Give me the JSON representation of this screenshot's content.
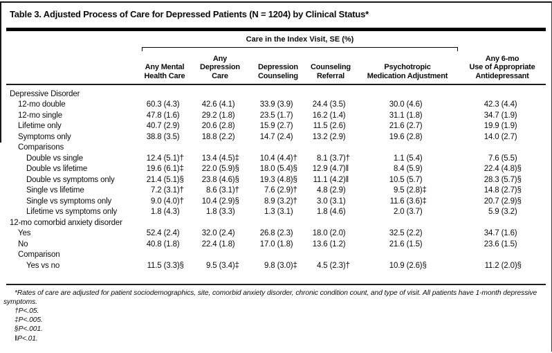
{
  "title": "Table 3. Adjusted Process of Care for Depressed Patients (N = 1204) by Clinical Status*",
  "table": {
    "spanner_label": "Care in the Index Visit, SE (%)",
    "columns": [
      {
        "lines": [
          "Any Mental",
          "Health Care"
        ]
      },
      {
        "lines": [
          "Any",
          "Depression",
          "Care"
        ]
      },
      {
        "lines": [
          "Depression",
          "Counseling"
        ]
      },
      {
        "lines": [
          "Counseling",
          "Referral"
        ]
      },
      {
        "lines": [
          "Psychotropic",
          "Medication Adjustment"
        ]
      },
      {
        "lines": [
          "Any 6-mo",
          "Use of Appropriate",
          "Antidepressant"
        ]
      }
    ],
    "rows": [
      {
        "label": "Depressive Disorder",
        "indent": 0,
        "values": [
          "",
          "",
          "",
          "",
          "",
          ""
        ]
      },
      {
        "label": "12-mo double",
        "indent": 1,
        "values": [
          "60.3 (4.3)",
          "42.6 (4.1)",
          "33.9 (3.9)",
          "24.4 (3.5)",
          "30.0 (4.6)",
          "42.3 (4.4)"
        ]
      },
      {
        "label": "12-mo single",
        "indent": 1,
        "values": [
          "47.8 (1.6)",
          "29.2 (1.8)",
          "23.5 (1.7)",
          "16.2 (1.4)",
          "31.1 (1.8)",
          "34.7 (1.9)"
        ]
      },
      {
        "label": "Lifetime only",
        "indent": 1,
        "values": [
          "40.7 (2.9)",
          "20.6 (2.8)",
          "15.9 (2.7)",
          "11.5 (2.6)",
          "21.6 (2.7)",
          "19.9 (1.9)"
        ]
      },
      {
        "label": "Symptoms only",
        "indent": 1,
        "values": [
          "38.8 (3.5)",
          "18.8 (2.2)",
          "14.7 (2.4)",
          "13.2 (2.9)",
          "19.6 (2.8)",
          "14.0 (2.7)"
        ]
      },
      {
        "label": "Comparisons",
        "indent": 1,
        "values": [
          "",
          "",
          "",
          "",
          "",
          ""
        ]
      },
      {
        "label": "Double vs single",
        "indent": 2,
        "values": [
          "12.4 (5.1)†",
          "13.4 (4.5)‡",
          "10.4 (4.4)†",
          "8.1 (3.7)†",
          "1.1 (5.4)",
          "7.6 (5.5)"
        ]
      },
      {
        "label": "Double vs lifetime",
        "indent": 2,
        "values": [
          "19.6 (6.1)‡",
          "22.0 (5.9)§",
          "18.0 (5.4)§",
          "12.9 (4.7)‖",
          "8.4 (5.9)",
          "22.4 (4.8)§"
        ]
      },
      {
        "label": "Double vs symptoms only",
        "indent": 2,
        "values": [
          "21.4 (5.1)§",
          "23.8 (4.6)§",
          "19.3 (4.8)§",
          "11.1 (4.2)‖",
          "10.5 (5.7)",
          "28.3 (5.7)§"
        ]
      },
      {
        "label": "Single vs lifetime",
        "indent": 2,
        "values": [
          "7.2 (3.1)†",
          "8.6 (3.1)†",
          "7.6 (2.9)†",
          "4.8 (2.9)",
          "9.5 (2.8)‡",
          "14.8 (2.7)§"
        ]
      },
      {
        "label": "Single vs symptoms only",
        "indent": 2,
        "values": [
          "9.0 (4.0)†",
          "10.4 (2.9)§",
          "8.9 (3.2)†",
          "3.0 (3.1)",
          "11.6 (3.6)‡",
          "20.7 (2.9)§"
        ]
      },
      {
        "label": "Lifetime vs symptoms only",
        "indent": 2,
        "values": [
          "1.8 (4.3)",
          "1.8 (3.3)",
          "1.3 (3.1)",
          "1.8 (4.6)",
          "2.0 (3.7)",
          "5.9 (3.2)"
        ]
      },
      {
        "label": "12-mo comorbid anxiety disorder",
        "indent": 0,
        "values": [
          "",
          "",
          "",
          "",
          "",
          ""
        ]
      },
      {
        "label": "Yes",
        "indent": 1,
        "values": [
          "52.4 (2.4)",
          "32.0 (2.4)",
          "26.8 (2.3)",
          "18.0 (2.0)",
          "32.5 (2.2)",
          "34.7 (1.6)"
        ]
      },
      {
        "label": "No",
        "indent": 1,
        "values": [
          "40.8 (1.8)",
          "22.4 (1.8)",
          "17.0 (1.8)",
          "13.6 (1.2)",
          "21.6 (1.5)",
          "23.6 (1.5)"
        ]
      },
      {
        "label": "Comparison",
        "indent": 1,
        "values": [
          "",
          "",
          "",
          "",
          "",
          ""
        ]
      },
      {
        "label": "Yes vs no",
        "indent": 2,
        "values": [
          "11.5 (3.3)§",
          "9.5 (3.4)‡",
          "9.8 (3.0)‡",
          "4.5 (2.3)†",
          "10.9 (2.6)§",
          "11.2 (2.0)§"
        ]
      }
    ]
  },
  "footnotes": [
    "*Rates of care are adjusted for patient sociodemographics, site, comorbid anxiety disorder, chronic condition count, and type of visit. All patients have 1-month depressive symptoms.",
    "†P<.05.",
    "‡P<.005.",
    "§P<.001.",
    "‖P<.01."
  ]
}
